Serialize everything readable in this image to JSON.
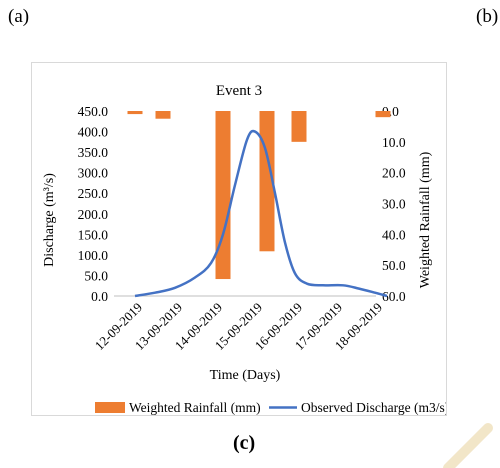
{
  "panel_labels": {
    "a": "(a)",
    "b": "(b)",
    "c": "(c)"
  },
  "colors": {
    "rainfall": "#ED7D31",
    "discharge": "#4472C4",
    "axis": "#bfbfbf",
    "watermark": "#f2e6c8"
  },
  "chart_data": {
    "type": "bar+line",
    "title": "Event 3",
    "xlabel": "Time (Days)",
    "ylabel_left": "Discharge (m³/s)",
    "ylabel_right": "Weighted Rainfall (mm)",
    "x_tick_labels": [
      "12-09-2019",
      "13-09-2019",
      "14-09-2019",
      "15-09-2019",
      "16-09-2019",
      "17-09-2019",
      "18-09-2019"
    ],
    "y_left": {
      "min": 0,
      "max": 450,
      "ticks": [
        "0.0",
        "50.0",
        "100.0",
        "150.0",
        "200.0",
        "250.0",
        "300.0",
        "350.0",
        "400.0",
        "450.0"
      ]
    },
    "y_right": {
      "min": 0,
      "max": 60,
      "inverted": true,
      "ticks": [
        "0.0",
        "10.0",
        "20.0",
        "30.0",
        "40.0",
        "50.0",
        "60.0"
      ]
    },
    "legend": {
      "position": "bottom",
      "rainfall": "Weighted Rainfall (mm)",
      "discharge": "Observed Discharge (m3/s)"
    },
    "rainfall_bars": [
      {
        "day": 0,
        "value": 1.0
      },
      {
        "day": 0.7,
        "value": 2.5
      },
      {
        "day": 2.2,
        "value": 54.5
      },
      {
        "day": 3.3,
        "value": 45.5
      },
      {
        "day": 4.1,
        "value": 10.0
      },
      {
        "day": 6.2,
        "value": 2.0
      }
    ],
    "discharge_series": [
      {
        "day": 0.0,
        "value": 0
      },
      {
        "day": 0.5,
        "value": 8
      },
      {
        "day": 1.0,
        "value": 20
      },
      {
        "day": 1.5,
        "value": 45
      },
      {
        "day": 1.9,
        "value": 80
      },
      {
        "day": 2.2,
        "value": 150
      },
      {
        "day": 2.5,
        "value": 270
      },
      {
        "day": 2.8,
        "value": 380
      },
      {
        "day": 3.0,
        "value": 400
      },
      {
        "day": 3.25,
        "value": 360
      },
      {
        "day": 3.5,
        "value": 250
      },
      {
        "day": 3.75,
        "value": 130
      },
      {
        "day": 4.0,
        "value": 55
      },
      {
        "day": 4.3,
        "value": 30
      },
      {
        "day": 4.7,
        "value": 26
      },
      {
        "day": 5.2,
        "value": 26
      },
      {
        "day": 5.6,
        "value": 18
      },
      {
        "day": 6.0,
        "value": 8
      },
      {
        "day": 6.3,
        "value": 0
      }
    ]
  }
}
